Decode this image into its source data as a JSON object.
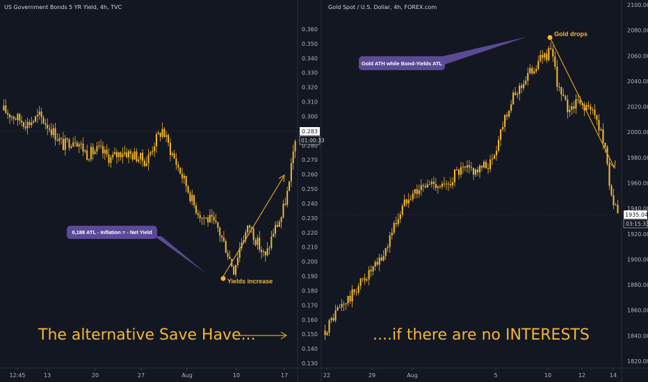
{
  "chart_data": [
    {
      "type": "candlestick",
      "title": "US Government Bonds 5 YR Yield, 4h, TVC",
      "y_ticks": [
        "0.360",
        "0.350",
        "0.340",
        "0.330",
        "0.320",
        "0.310",
        "0.300",
        "0.290",
        "0.280",
        "0.270",
        "0.260",
        "0.250",
        "0.240",
        "0.230",
        "0.220",
        "0.210",
        "0.200",
        "0.190",
        "0.180",
        "0.170",
        "0.160",
        "0.150",
        "0.140",
        "0.130"
      ],
      "ylim": [
        0.127,
        0.367
      ],
      "x_ticks": [
        "12:45",
        "13",
        "20",
        "27",
        "Aug",
        "10",
        "17"
      ],
      "price_label": "0.283",
      "timer_label": "01:00:33",
      "ohlc_close_path": [
        {
          "i": 0,
          "v": 0.301
        },
        {
          "i": 6,
          "v": 0.296
        },
        {
          "i": 12,
          "v": 0.292
        },
        {
          "i": 18,
          "v": 0.297
        },
        {
          "i": 24,
          "v": 0.288
        },
        {
          "i": 30,
          "v": 0.277
        },
        {
          "i": 36,
          "v": 0.282
        },
        {
          "i": 42,
          "v": 0.271
        },
        {
          "i": 48,
          "v": 0.274
        },
        {
          "i": 54,
          "v": 0.268
        },
        {
          "i": 60,
          "v": 0.273
        },
        {
          "i": 66,
          "v": 0.27
        },
        {
          "i": 72,
          "v": 0.266
        },
        {
          "i": 76,
          "v": 0.279
        },
        {
          "i": 80,
          "v": 0.288
        },
        {
          "i": 84,
          "v": 0.274
        },
        {
          "i": 88,
          "v": 0.262
        },
        {
          "i": 92,
          "v": 0.25
        },
        {
          "i": 96,
          "v": 0.236
        },
        {
          "i": 100,
          "v": 0.228
        },
        {
          "i": 104,
          "v": 0.226
        },
        {
          "i": 108,
          "v": 0.22
        },
        {
          "i": 112,
          "v": 0.207
        },
        {
          "i": 116,
          "v": 0.192
        },
        {
          "i": 120,
          "v": 0.212
        },
        {
          "i": 124,
          "v": 0.222
        },
        {
          "i": 128,
          "v": 0.21
        },
        {
          "i": 132,
          "v": 0.2
        },
        {
          "i": 136,
          "v": 0.218
        },
        {
          "i": 140,
          "v": 0.228
        },
        {
          "i": 144,
          "v": 0.25
        },
        {
          "i": 147,
          "v": 0.283
        }
      ],
      "annotations": [
        {
          "text": "0,188 ATL - Inflation = - Net Yield",
          "type": "callout"
        },
        {
          "text": "Yields increase",
          "type": "point"
        }
      ]
    },
    {
      "type": "candlestick",
      "title": "Gold Spot / U.S. Dollar, 4h, FOREX.com",
      "y_ticks": [
        "2100.00",
        "2080.00",
        "2060.00",
        "2040.00",
        "2020.00",
        "2000.00",
        "1980.00",
        "1960.00",
        "1940.00",
        "1920.00",
        "1900.00",
        "1880.00",
        "1860.00",
        "1840.00",
        "1820.00"
      ],
      "ylim": [
        1815,
        2103
      ],
      "x_ticks": [
        "22",
        "29",
        "Aug",
        "5",
        "10",
        "12",
        "14"
      ],
      "price_label": "1935.04",
      "timer_label": "03:15:33",
      "ohlc_close_path": [
        {
          "i": 0,
          "v": 1843
        },
        {
          "i": 6,
          "v": 1860
        },
        {
          "i": 12,
          "v": 1870
        },
        {
          "i": 18,
          "v": 1885
        },
        {
          "i": 24,
          "v": 1895
        },
        {
          "i": 28,
          "v": 1905
        },
        {
          "i": 32,
          "v": 1925
        },
        {
          "i": 36,
          "v": 1940
        },
        {
          "i": 40,
          "v": 1955
        },
        {
          "i": 46,
          "v": 1960
        },
        {
          "i": 52,
          "v": 1965
        },
        {
          "i": 58,
          "v": 1960
        },
        {
          "i": 62,
          "v": 1972
        },
        {
          "i": 68,
          "v": 1975
        },
        {
          "i": 74,
          "v": 1975
        },
        {
          "i": 80,
          "v": 1982
        },
        {
          "i": 86,
          "v": 2020
        },
        {
          "i": 92,
          "v": 2040
        },
        {
          "i": 98,
          "v": 2055
        },
        {
          "i": 104,
          "v": 2068
        },
        {
          "i": 108,
          "v": 2072
        },
        {
          "i": 112,
          "v": 2040
        },
        {
          "i": 116,
          "v": 2025
        },
        {
          "i": 120,
          "v": 2030
        },
        {
          "i": 124,
          "v": 2028
        },
        {
          "i": 128,
          "v": 2022
        },
        {
          "i": 132,
          "v": 2008
        },
        {
          "i": 134,
          "v": 1990
        },
        {
          "i": 137,
          "v": 1955
        },
        {
          "i": 140,
          "v": 1935
        }
      ],
      "annotations": [
        {
          "text": "Gold ATH while Bond-Yields ATL",
          "type": "callout"
        },
        {
          "text": "Gold drops",
          "type": "point"
        }
      ]
    }
  ],
  "captions": {
    "left": "The alternative Save Have...",
    "right": "....if there are no INTERESTS"
  },
  "colors": {
    "background": "#131722",
    "candle": "#f5b731",
    "arrow": "#d9a520",
    "callout": "#5b4a96",
    "grid": "#2a2e39"
  }
}
